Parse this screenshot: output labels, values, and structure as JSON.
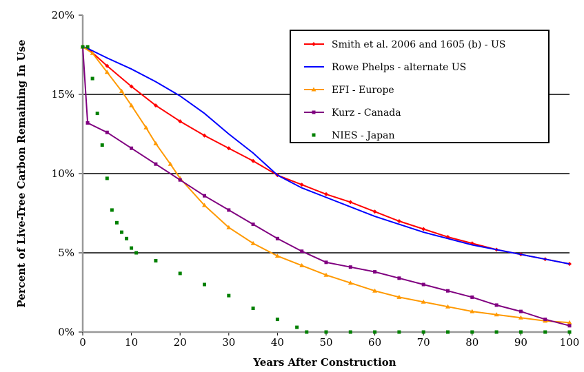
{
  "chart_data": {
    "type": "line",
    "xlabel": "Years After Construction",
    "ylabel": "Percent of Live-Tree Carbon Remaining In Use",
    "xlim": [
      0,
      100
    ],
    "ylim": [
      0,
      20
    ],
    "x_ticks": [
      "0",
      "10",
      "20",
      "30",
      "40",
      "50",
      "60",
      "70",
      "80",
      "90",
      "100"
    ],
    "y_ticks": [
      "0%",
      "5%",
      "10%",
      "15%",
      "20%"
    ],
    "grid": "horizontal",
    "legend_position": "top-right",
    "series": [
      {
        "name": "Smith et al. 2006 and 1605 (b) - US",
        "color": "#ff0000",
        "marker": "diamond",
        "x": [
          0,
          1,
          5,
          10,
          15,
          20,
          25,
          30,
          35,
          40,
          45,
          50,
          55,
          60,
          65,
          70,
          75,
          80,
          85,
          90,
          95,
          100
        ],
        "y": [
          18,
          17.9,
          16.8,
          15.5,
          14.3,
          13.3,
          12.4,
          11.6,
          10.8,
          9.9,
          9.3,
          8.7,
          8.2,
          7.6,
          7.0,
          6.5,
          6.0,
          5.6,
          5.2,
          4.9,
          4.6,
          4.3
        ]
      },
      {
        "name": "Rowe Phelps - alternate US",
        "color": "#0000ff",
        "marker": "line",
        "x": [
          0,
          1,
          5,
          10,
          15,
          20,
          25,
          30,
          35,
          40,
          45,
          50,
          55,
          60,
          65,
          70,
          75,
          80,
          85,
          90,
          95,
          100
        ],
        "y": [
          18,
          17.9,
          17.3,
          16.6,
          15.8,
          14.9,
          13.8,
          12.5,
          11.3,
          9.9,
          9.1,
          8.5,
          7.9,
          7.3,
          6.8,
          6.3,
          5.9,
          5.5,
          5.2,
          4.9,
          4.6,
          4.3
        ]
      },
      {
        "name": "EFI - Europe",
        "color": "#ff9900",
        "marker": "triangle",
        "x": [
          0,
          2,
          5,
          8,
          10,
          13,
          15,
          18,
          20,
          25,
          30,
          35,
          40,
          45,
          50,
          55,
          60,
          65,
          70,
          75,
          80,
          85,
          90,
          95,
          100
        ],
        "y": [
          18,
          17.6,
          16.4,
          15.2,
          14.3,
          12.9,
          11.9,
          10.6,
          9.7,
          8.0,
          6.6,
          5.6,
          4.8,
          4.2,
          3.6,
          3.1,
          2.6,
          2.2,
          1.9,
          1.6,
          1.3,
          1.1,
          0.9,
          0.7,
          0.6
        ]
      },
      {
        "name": "Kurz - Canada",
        "color": "#800080",
        "marker": "square",
        "x": [
          0,
          1,
          5,
          10,
          15,
          20,
          25,
          30,
          35,
          40,
          45,
          50,
          55,
          60,
          65,
          70,
          75,
          80,
          85,
          90,
          95,
          100
        ],
        "y": [
          18,
          13.2,
          12.6,
          11.6,
          10.6,
          9.6,
          8.6,
          7.7,
          6.8,
          5.9,
          5.1,
          4.4,
          4.1,
          3.8,
          3.4,
          3.0,
          2.6,
          2.2,
          1.7,
          1.3,
          0.8,
          0.4
        ]
      },
      {
        "name": "NIES - Japan",
        "color": "#008000",
        "marker": "dot",
        "x": [
          0,
          1,
          2,
          3,
          4,
          5,
          6,
          7,
          8,
          9,
          10,
          11,
          15,
          20,
          25,
          30,
          35,
          40,
          44,
          46,
          50,
          55,
          60,
          65,
          70,
          75,
          80,
          85,
          90,
          95,
          100
        ],
        "y": [
          18,
          18,
          16.0,
          13.8,
          11.8,
          9.7,
          7.7,
          6.9,
          6.3,
          5.9,
          5.3,
          5.0,
          4.5,
          3.7,
          3.0,
          2.3,
          1.5,
          0.8,
          0.3,
          0,
          0,
          0,
          0,
          0,
          0,
          0,
          0,
          0,
          0,
          0,
          0
        ]
      }
    ]
  }
}
